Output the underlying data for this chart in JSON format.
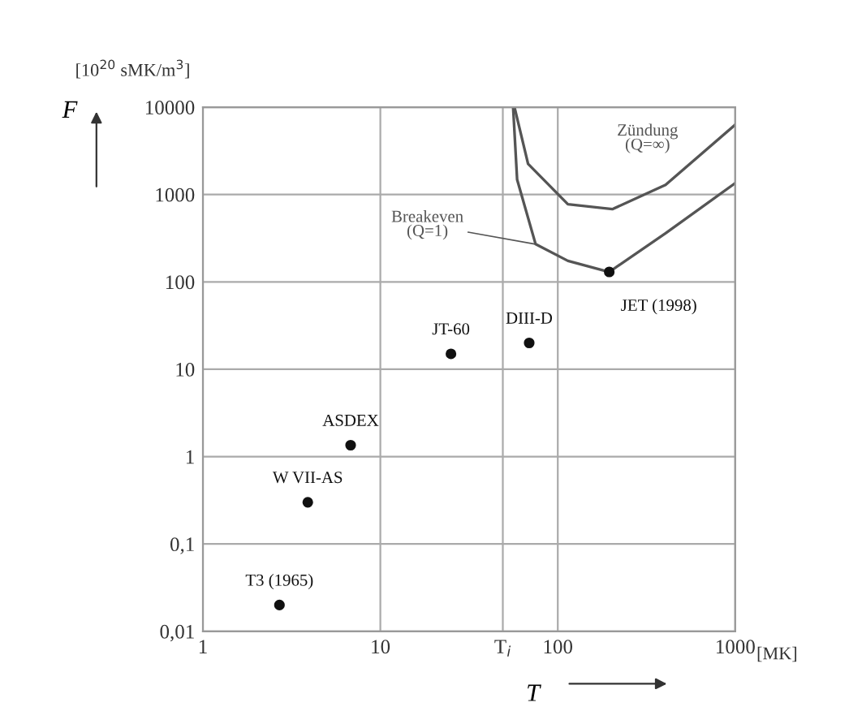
{
  "chart_data": {
    "type": "scatter",
    "xlabel": "T",
    "ylabel": "F",
    "log": "xy",
    "xlim": [
      1,
      1000
    ],
    "ylim": [
      0.01,
      10000
    ],
    "xticks": [
      1,
      10,
      {
        "value": 49,
        "label": "T$_{i}$"
      },
      100,
      1000
    ],
    "yticks": [
      {
        "value": 0.01,
        "label": "0,01"
      },
      {
        "value": 0.1,
        "label": "0,1"
      },
      1,
      10,
      100,
      1000,
      10000
    ],
    "grid": true,
    "marker": "circle",
    "annotations": [
      "[10$^{20}$ sMK/m$^{3}$]",
      "[MK]"
    ],
    "series": [
      {
        "name": "Zündung\n(Q=∞)",
        "type": "line",
        "marker": "none",
        "color": "#555555",
        "x": [
          57,
          68,
          114,
          203,
          405,
          1000
        ],
        "values": [
          10000,
          2240,
          775,
          680,
          1290,
          6300
        ]
      },
      {
        "name": "Breakeven\n(Q=1)",
        "type": "line",
        "marker": "none",
        "color": "#555555",
        "x": [
          56,
          59,
          75,
          114,
          195,
          405,
          1000
        ],
        "values": [
          10000,
          1480,
          270,
          174,
          130,
          360,
          1350
        ]
      },
      {
        "name": "T3 (1965)",
        "color": "#111111",
        "x": [
          2.7
        ],
        "values": [
          0.02
        ]
      },
      {
        "name": "W VII-AS",
        "color": "#111111",
        "x": [
          3.9
        ],
        "values": [
          0.3
        ]
      },
      {
        "name": "ASDEX",
        "color": "#111111",
        "x": [
          6.8
        ],
        "values": [
          1.35
        ]
      },
      {
        "name": "JT-60",
        "color": "#111111",
        "x": [
          25
        ],
        "values": [
          15
        ]
      },
      {
        "name": "DIII-D",
        "color": "#111111",
        "x": [
          69
        ],
        "values": [
          20
        ]
      },
      {
        "name": "JET (1998)",
        "color": "#111111",
        "x": [
          195
        ],
        "values": [
          130
        ]
      }
    ]
  }
}
